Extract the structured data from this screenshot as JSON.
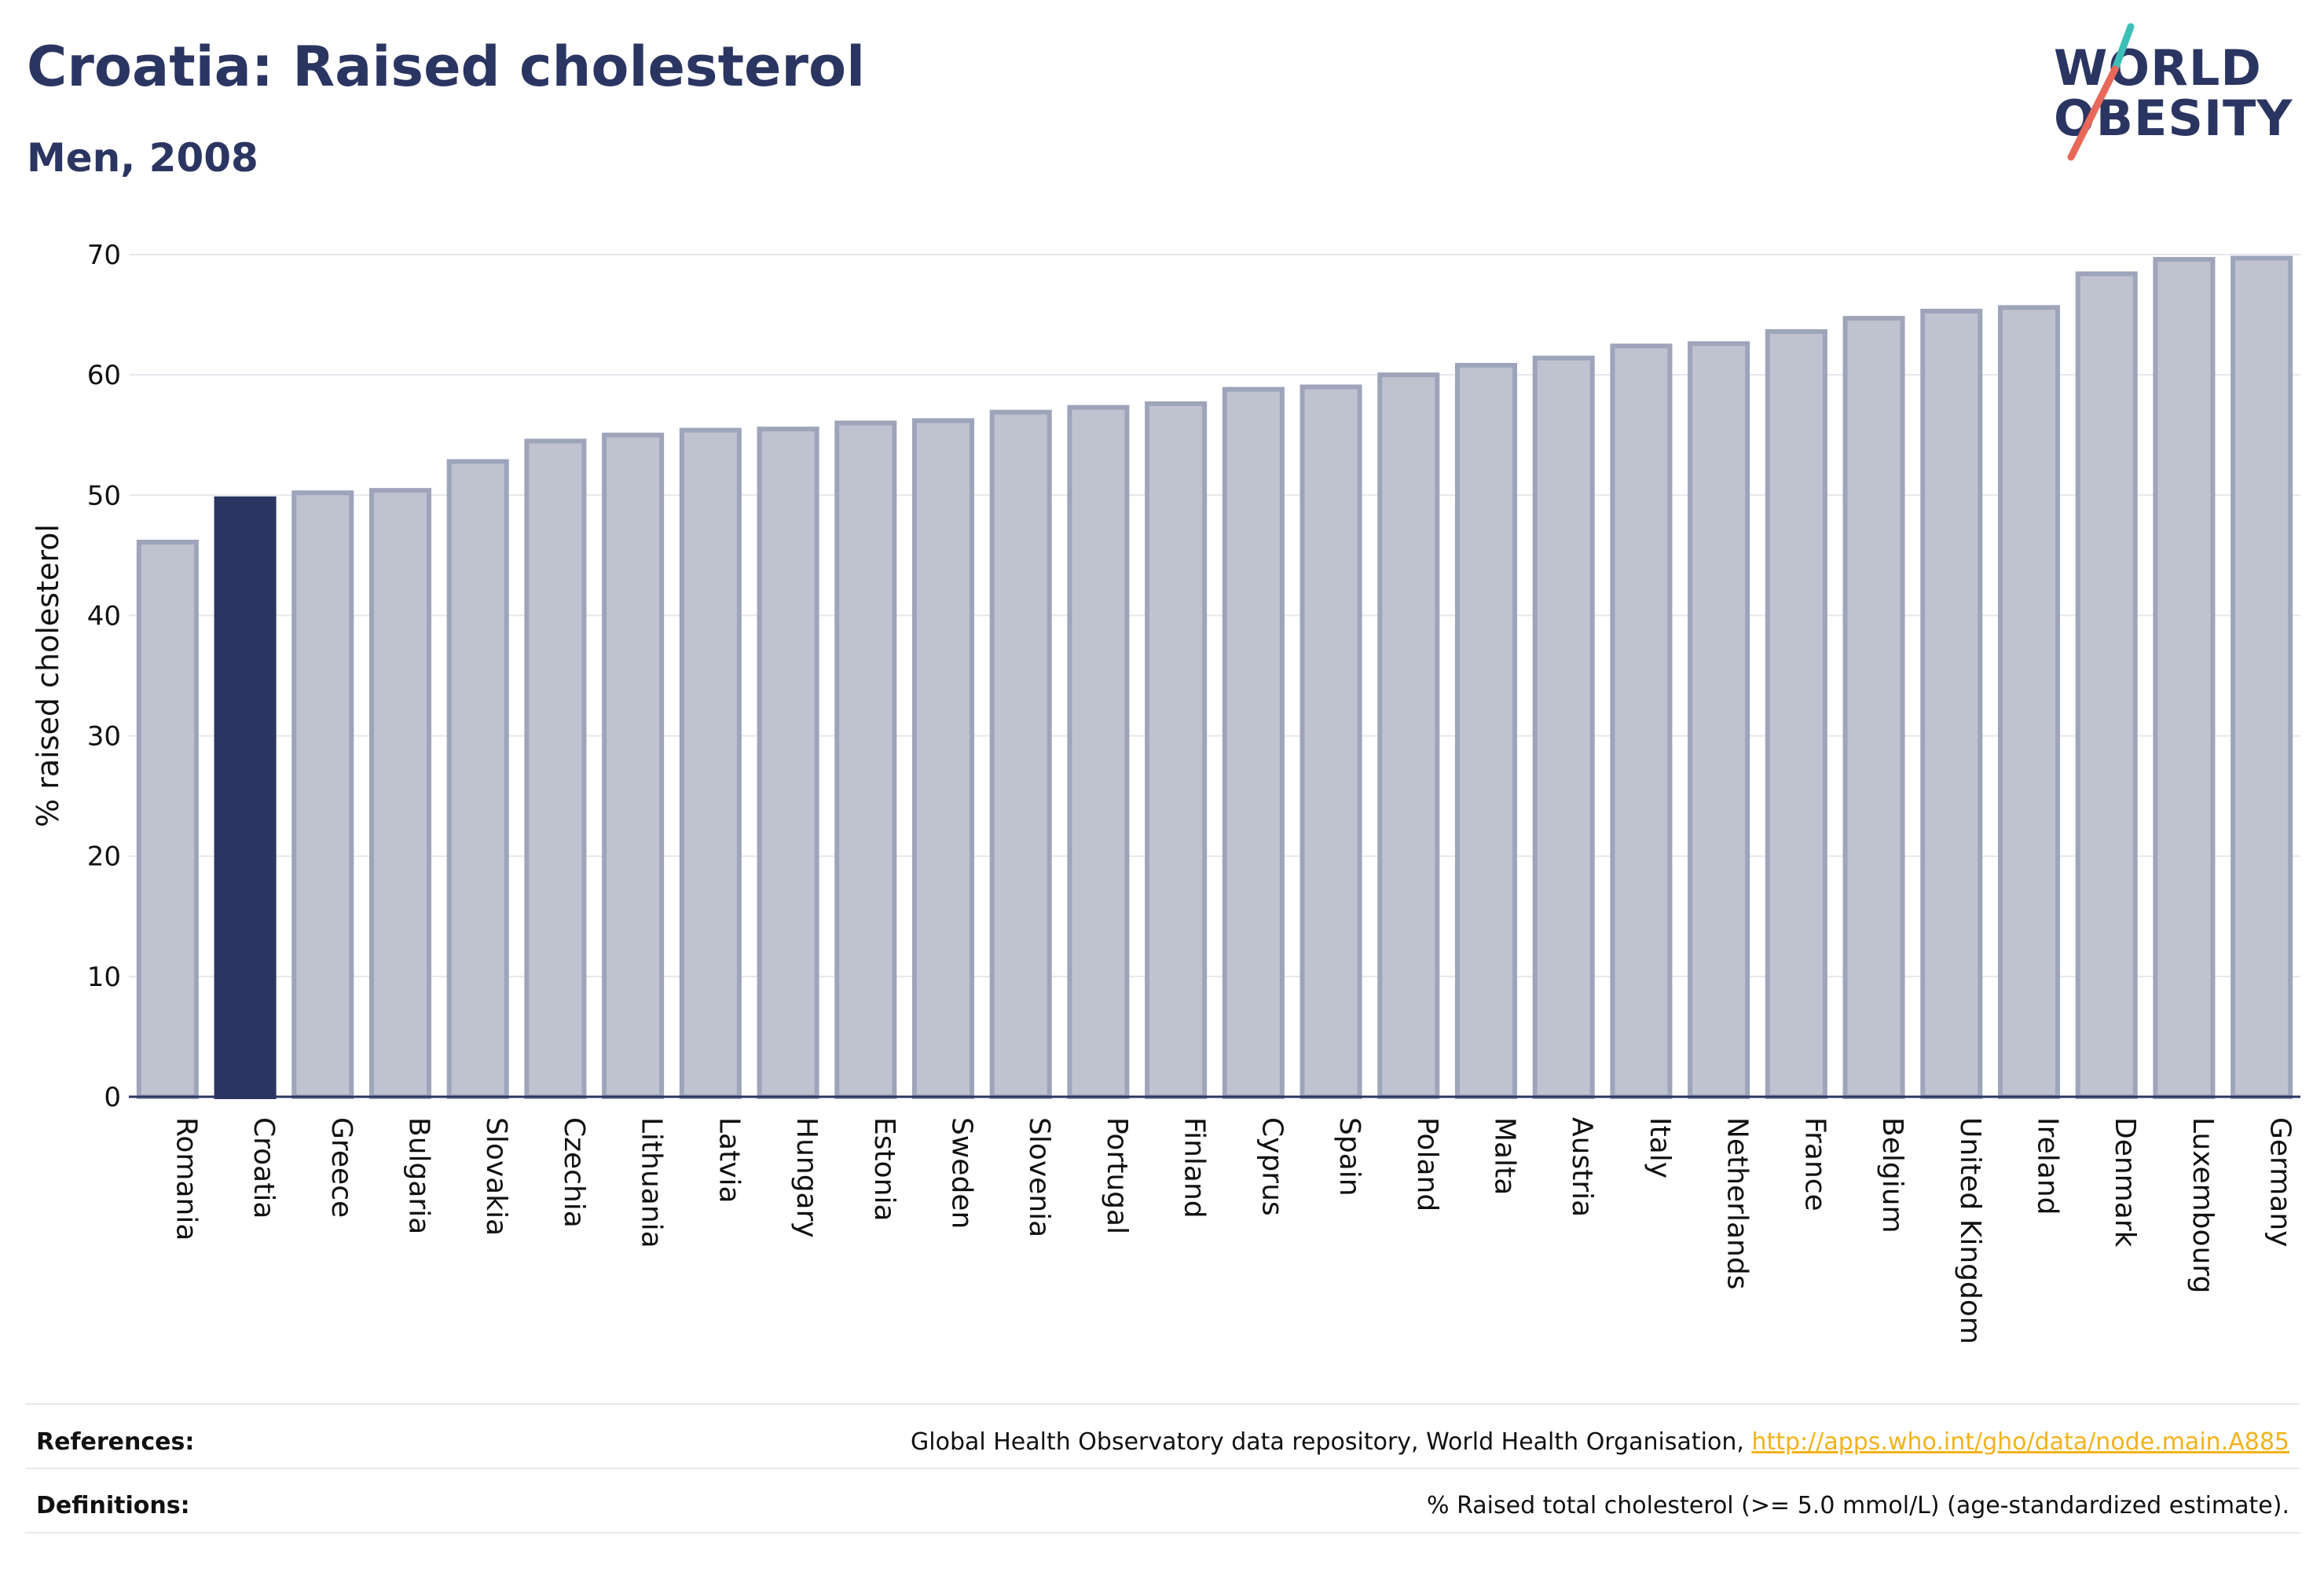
{
  "header": {
    "title": "Croatia: Raised cholesterol",
    "subtitle": "Men, 2008"
  },
  "logo": {
    "line1": "WORLD",
    "line2": "OBESITY",
    "accent_teal": "#3dbfb8",
    "accent_coral": "#e8685a"
  },
  "chart_data": {
    "type": "bar",
    "ylabel": "% raised cholesterol",
    "ylim": [
      0,
      70
    ],
    "yticks": [
      0,
      10,
      20,
      30,
      40,
      50,
      60,
      70
    ],
    "grid": true,
    "highlight": "Croatia",
    "colors": {
      "bar_fill": "#bfc3d0",
      "bar_stroke": "#9ea4ba",
      "highlight_fill": "#2b3561",
      "grid": "#e6e7ee",
      "axis": "#2b3561"
    },
    "categories": [
      "Romania",
      "Croatia",
      "Greece",
      "Bulgaria",
      "Slovakia",
      "Czechia",
      "Lithuania",
      "Latvia",
      "Hungary",
      "Estonia",
      "Sweden",
      "Slovenia",
      "Portugal",
      "Finland",
      "Cyprus",
      "Spain",
      "Poland",
      "Malta",
      "Austria",
      "Italy",
      "Netherlands",
      "France",
      "Belgium",
      "United Kingdom",
      "Ireland",
      "Denmark",
      "Luxembourg",
      "Germany"
    ],
    "values": [
      46.1,
      49.7,
      50.2,
      50.4,
      52.8,
      54.5,
      55.0,
      55.4,
      55.5,
      56.0,
      56.2,
      56.9,
      57.3,
      57.6,
      58.8,
      59.0,
      60.0,
      60.8,
      61.4,
      62.4,
      62.6,
      63.6,
      64.7,
      65.3,
      65.6,
      68.4,
      69.6,
      69.7
    ]
  },
  "footer": {
    "references_label": "References:",
    "references_text": "Global Health Observatory data repository, World Health Organisation, ",
    "references_link": "http://apps.who.int/gho/data/node.main.A885",
    "definitions_label": "Definitions:",
    "definitions_text": "% Raised total cholesterol (>= 5.0 mmol/L) (age-standardized estimate)."
  }
}
